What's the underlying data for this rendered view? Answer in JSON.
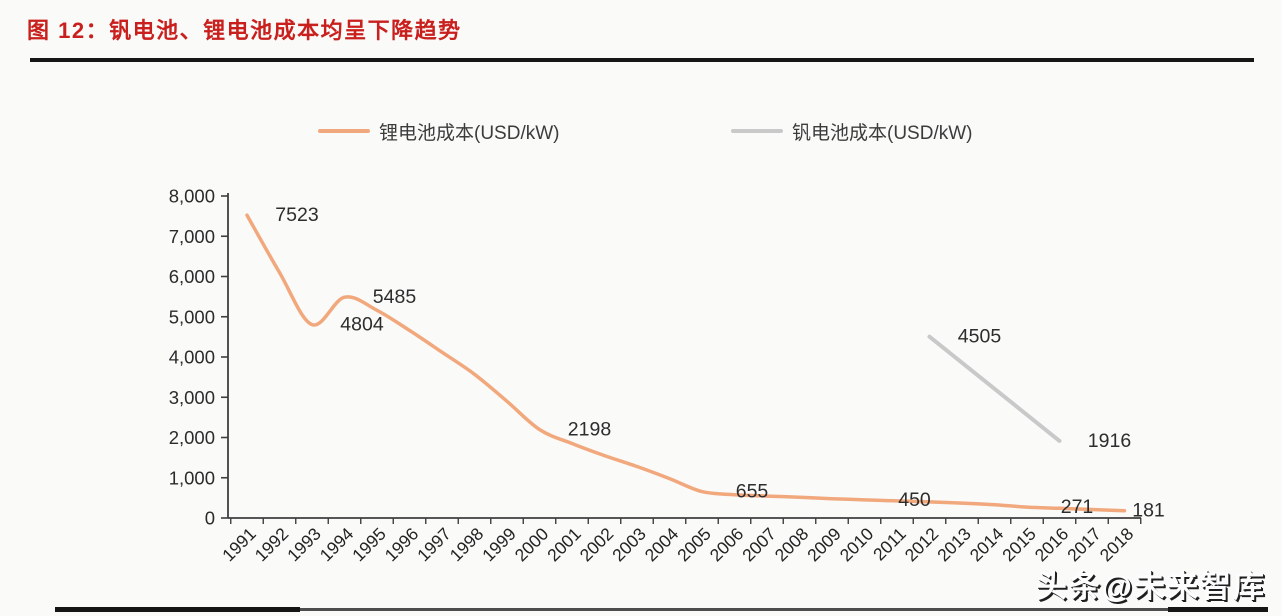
{
  "header": {
    "title": "图 12：钒电池、锂电池成本均呈下降趋势"
  },
  "watermark": "头条@未来智库",
  "chart_data": {
    "type": "line",
    "title": "图 12：钒电池、锂电池成本均呈下降趋势",
    "xlabel": "",
    "ylabel": "",
    "x": [
      1991,
      1992,
      1993,
      1994,
      1995,
      1996,
      1997,
      1998,
      1999,
      2000,
      2001,
      2002,
      2003,
      2004,
      2005,
      2006,
      2007,
      2008,
      2009,
      2010,
      2011,
      2012,
      2013,
      2014,
      2015,
      2016,
      2017,
      2018
    ],
    "ylim": [
      0,
      8000
    ],
    "ytick_labels": [
      "0",
      "1,000",
      "2,000",
      "3,000",
      "4,000",
      "5,000",
      "6,000",
      "7,000",
      "8,000"
    ],
    "grid": false,
    "legend_position": "top",
    "series": [
      {
        "name": "锂电池成本(USD/kW)",
        "color": "#f2a87d",
        "values": [
          7523,
          6100,
          4804,
          5485,
          5160,
          4660,
          4120,
          3570,
          2900,
          2198,
          1850,
          1550,
          1280,
          980,
          655,
          580,
          545,
          515,
          480,
          450,
          425,
          400,
          370,
          330,
          271,
          240,
          210,
          181
        ],
        "point_labels": [
          {
            "x": 1991,
            "y": 7523,
            "text": "7523"
          },
          {
            "x": 1993,
            "y": 4804,
            "text": "4804"
          },
          {
            "x": 1994,
            "y": 5485,
            "text": "5485"
          },
          {
            "x": 2000,
            "y": 2198,
            "text": "2198"
          },
          {
            "x": 2005,
            "y": 655,
            "text": "655"
          },
          {
            "x": 2010,
            "y": 450,
            "text": "450"
          },
          {
            "x": 2015,
            "y": 271,
            "text": "271"
          },
          {
            "x": 2018,
            "y": 181,
            "text": "181",
            "dx": 24
          }
        ]
      },
      {
        "name": "钒电池成本(USD/kW)",
        "color": "#c9c9c9",
        "x": [
          2012,
          2016
        ],
        "values": [
          4505,
          1916
        ],
        "point_labels": [
          {
            "x": 2012,
            "y": 4505,
            "text": "4505"
          },
          {
            "x": 2016,
            "y": 1916,
            "text": "1916"
          }
        ]
      }
    ]
  }
}
